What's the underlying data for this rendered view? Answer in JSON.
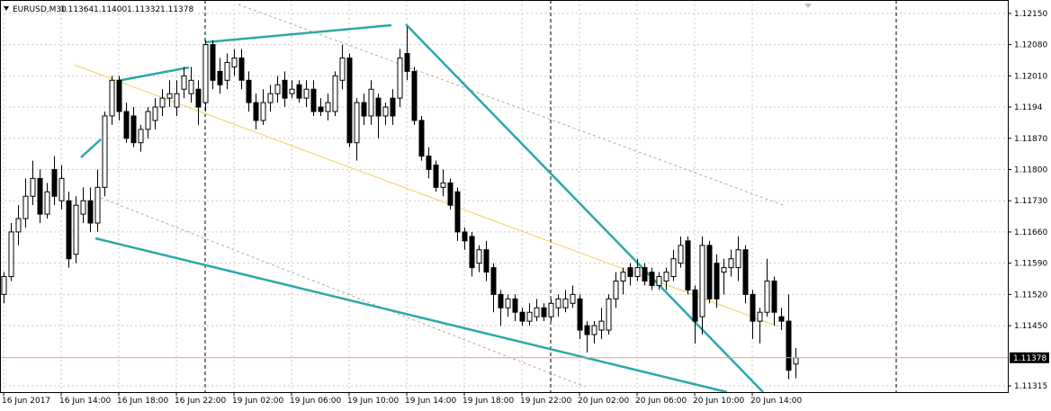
{
  "chart_data": {
    "type": "candlestick",
    "title": "EURUSD,M30",
    "ohlc_labels": [
      "1.11364",
      "1.11400",
      "1.11332",
      "1.11378"
    ],
    "open": [
      1.1152,
      1.1156,
      1.1166,
      1.1169,
      1.1174,
      1.1178,
      1.117,
      1.118,
      1.1173,
      1.1173,
      1.1161,
      1.117,
      1.1173,
      1.1168,
      1.1176,
      1.1192,
      1.12,
      1.1193,
      1.1192,
      1.1186,
      1.1189,
      1.1191,
      1.1194,
      1.1196,
      1.1194,
      1.1198,
      1.1197,
      1.1198,
      1.1195,
      1.1208,
      1.1202,
      1.12,
      1.1203,
      1.1205,
      1.12,
      1.1195,
      1.1191,
      1.1195,
      1.1197,
      1.12,
      1.1197,
      1.1199,
      1.1196,
      1.1198,
      1.1194,
      1.1193,
      1.1193,
      1.12,
      1.1205,
      1.1186,
      1.1195,
      1.1192,
      1.1196,
      1.1192,
      1.1196,
      1.1196,
      1.1206,
      1.1202,
      1.1191,
      1.1183,
      1.1181,
      1.1176,
      1.1177,
      1.1175,
      1.1166,
      1.1165,
      1.1159,
      1.1162,
      1.1158,
      1.1152,
      1.1149,
      1.1151,
      1.1148,
      1.1146,
      1.1147,
      1.1149,
      1.1147,
      1.1149,
      1.1149,
      1.115,
      1.1151,
      1.1145,
      1.1143,
      1.1144,
      1.1144,
      1.1151,
      1.1155,
      1.1158,
      1.1156,
      1.1158,
      1.1157,
      1.1154,
      1.1155,
      1.1156,
      1.1159,
      1.1164,
      1.1153,
      1.1147,
      1.1163,
      1.1159,
      1.1157,
      1.1158,
      1.1158,
      1.1162,
      1.1152,
      1.1146,
      1.1148,
      1.1155,
      1.1147,
      1.1146,
      1.11364
    ],
    "high": [
      1.1157,
      1.1168,
      1.1172,
      1.1178,
      1.1182,
      1.118,
      1.1177,
      1.1183,
      1.1181,
      1.1175,
      1.1174,
      1.1176,
      1.1176,
      1.118,
      1.1193,
      1.1201,
      1.1201,
      1.1195,
      1.1194,
      1.119,
      1.1194,
      1.1196,
      1.1198,
      1.12,
      1.12,
      1.1203,
      1.1203,
      1.12,
      1.1209,
      1.1209,
      1.1205,
      1.1206,
      1.1207,
      1.1207,
      1.1202,
      1.1197,
      1.1198,
      1.1199,
      1.1201,
      1.1202,
      1.12,
      1.12,
      1.12,
      1.12,
      1.1196,
      1.1197,
      1.1202,
      1.1208,
      1.1206,
      1.1196,
      1.1197,
      1.12,
      1.1197,
      1.1195,
      1.1198,
      1.1207,
      1.1212,
      1.1203,
      1.1192,
      1.1185,
      1.1182,
      1.118,
      1.1178,
      1.1176,
      1.1167,
      1.1166,
      1.1163,
      1.1164,
      1.1159,
      1.1153,
      1.1152,
      1.1152,
      1.1149,
      1.115,
      1.1151,
      1.115,
      1.1151,
      1.1152,
      1.1153,
      1.1154,
      1.1152,
      1.1146,
      1.1146,
      1.1149,
      1.1152,
      1.1157,
      1.1158,
      1.1159,
      1.116,
      1.1159,
      1.1158,
      1.1157,
      1.1158,
      1.1162,
      1.1165,
      1.1165,
      1.1154,
      1.1165,
      1.1164,
      1.1161,
      1.116,
      1.1162,
      1.1165,
      1.1163,
      1.1153,
      1.1149,
      1.116,
      1.1156,
      1.1149,
      1.1152,
      1.114
    ],
    "low": [
      1.115,
      1.1155,
      1.1163,
      1.1167,
      1.1172,
      1.1168,
      1.1169,
      1.1172,
      1.1171,
      1.1158,
      1.1159,
      1.1168,
      1.1166,
      1.1166,
      1.1174,
      1.119,
      1.1191,
      1.1186,
      1.1185,
      1.1184,
      1.1187,
      1.1189,
      1.1192,
      1.1194,
      1.1192,
      1.1196,
      1.1195,
      1.119,
      1.1193,
      1.1198,
      1.1197,
      1.1198,
      1.1201,
      1.1198,
      1.1193,
      1.1189,
      1.119,
      1.1193,
      1.1195,
      1.1194,
      1.1196,
      1.1195,
      1.1194,
      1.1192,
      1.1192,
      1.1191,
      1.1192,
      1.1198,
      1.1185,
      1.1182,
      1.119,
      1.119,
      1.1187,
      1.119,
      1.119,
      1.1194,
      1.12,
      1.119,
      1.1182,
      1.1178,
      1.1175,
      1.1174,
      1.1171,
      1.1164,
      1.1162,
      1.1156,
      1.1157,
      1.1155,
      1.1148,
      1.1145,
      1.1147,
      1.1146,
      1.1145,
      1.1145,
      1.1146,
      1.1146,
      1.1146,
      1.1147,
      1.1148,
      1.1149,
      1.1142,
      1.1139,
      1.1141,
      1.1142,
      1.1143,
      1.1149,
      1.1152,
      1.1154,
      1.1155,
      1.1154,
      1.1153,
      1.1153,
      1.1153,
      1.1155,
      1.1158,
      1.1152,
      1.1141,
      1.1143,
      1.115,
      1.1149,
      1.1152,
      1.1156,
      1.1155,
      1.115,
      1.1142,
      1.1141,
      1.1147,
      1.1145,
      1.1144,
      1.1133,
      1.11332
    ],
    "close": [
      1.1156,
      1.1166,
      1.1169,
      1.1174,
      1.1178,
      1.117,
      1.1175,
      1.1174,
      1.1178,
      1.116,
      1.1172,
      1.1173,
      1.1168,
      1.1176,
      1.1192,
      1.12,
      1.1193,
      1.1187,
      1.1186,
      1.1189,
      1.1193,
      1.1194,
      1.1196,
      1.1197,
      1.1197,
      1.1201,
      1.12,
      1.1194,
      1.1208,
      1.12,
      1.1199,
      1.1204,
      1.1205,
      1.12,
      1.1195,
      1.1191,
      1.1195,
      1.1197,
      1.1199,
      1.1196,
      1.1198,
      1.1196,
      1.1198,
      1.1193,
      1.1193,
      1.1195,
      1.1201,
      1.1205,
      1.1186,
      1.1195,
      1.1192,
      1.1198,
      1.1192,
      1.1194,
      1.1192,
      1.1205,
      1.1202,
      1.1191,
      1.1183,
      1.118,
      1.1176,
      1.1177,
      1.1172,
      1.1166,
      1.1164,
      1.1158,
      1.1162,
      1.1157,
      1.1152,
      1.1149,
      1.1151,
      1.1148,
      1.1146,
      1.1148,
      1.1149,
      1.1147,
      1.115,
      1.1151,
      1.1151,
      1.1152,
      1.1144,
      1.1143,
      1.1145,
      1.1146,
      1.1151,
      1.1155,
      1.1157,
      1.1156,
      1.1158,
      1.1155,
      1.1154,
      1.1156,
      1.1157,
      1.116,
      1.1163,
      1.1153,
      1.1146,
      1.1163,
      1.1151,
      1.1151,
      1.1158,
      1.116,
      1.1162,
      1.1152,
      1.1146,
      1.1148,
      1.1155,
      1.1148,
      1.1146,
      1.1135,
      1.11378
    ],
    "bull_color": "#ffffff",
    "bear_color": "#000000",
    "price_line_color": "#e8a080",
    "xlim": [
      -0.5,
      139.5
    ],
    "ylim": [
      1.11301,
      1.1218
    ],
    "yticks": [
      {
        "value": 1.1215,
        "label": "1.12150"
      },
      {
        "value": 1.1208,
        "label": "1.12080"
      },
      {
        "value": 1.1201,
        "label": "1.12010"
      },
      1.1194,
      {
        "value": 1.1187,
        "label": "1.11870"
      },
      {
        "value": 1.118,
        "label": "1.11800"
      },
      {
        "value": 1.1173,
        "label": "1.11730"
      },
      {
        "value": 1.1166,
        "label": "1.11660"
      },
      {
        "value": 1.1159,
        "label": "1.11590"
      },
      {
        "value": 1.1152,
        "label": "1.11520"
      },
      {
        "value": 1.1145,
        "label": "1.11450"
      },
      1.11315
    ],
    "xticks": [
      {
        "value": 0,
        "label": "16 Jun 2017"
      },
      {
        "value": 8,
        "label": "16 Jun 14:00"
      },
      {
        "value": 16,
        "label": "16 Jun 18:00"
      },
      {
        "value": 24,
        "label": "16 Jun 22:00"
      },
      {
        "value": 32,
        "label": "19 Jun 02:00"
      },
      {
        "value": 40,
        "label": "19 Jun 06:00"
      },
      {
        "value": 48,
        "label": "19 Jun 10:00"
      },
      {
        "value": 56,
        "label": "19 Jun 14:00"
      },
      {
        "value": 64,
        "label": "19 Jun 18:00"
      },
      {
        "value": 72,
        "label": "19 Jun 22:00"
      },
      {
        "value": 80,
        "label": "20 Jun 02:00"
      },
      {
        "value": 88,
        "label": "20 Jun 06:00"
      },
      {
        "value": 96,
        "label": "20 Jun 10:00"
      },
      {
        "value": 104,
        "label": "20 Jun 14:00"
      }
    ],
    "grid": true
  }
}
